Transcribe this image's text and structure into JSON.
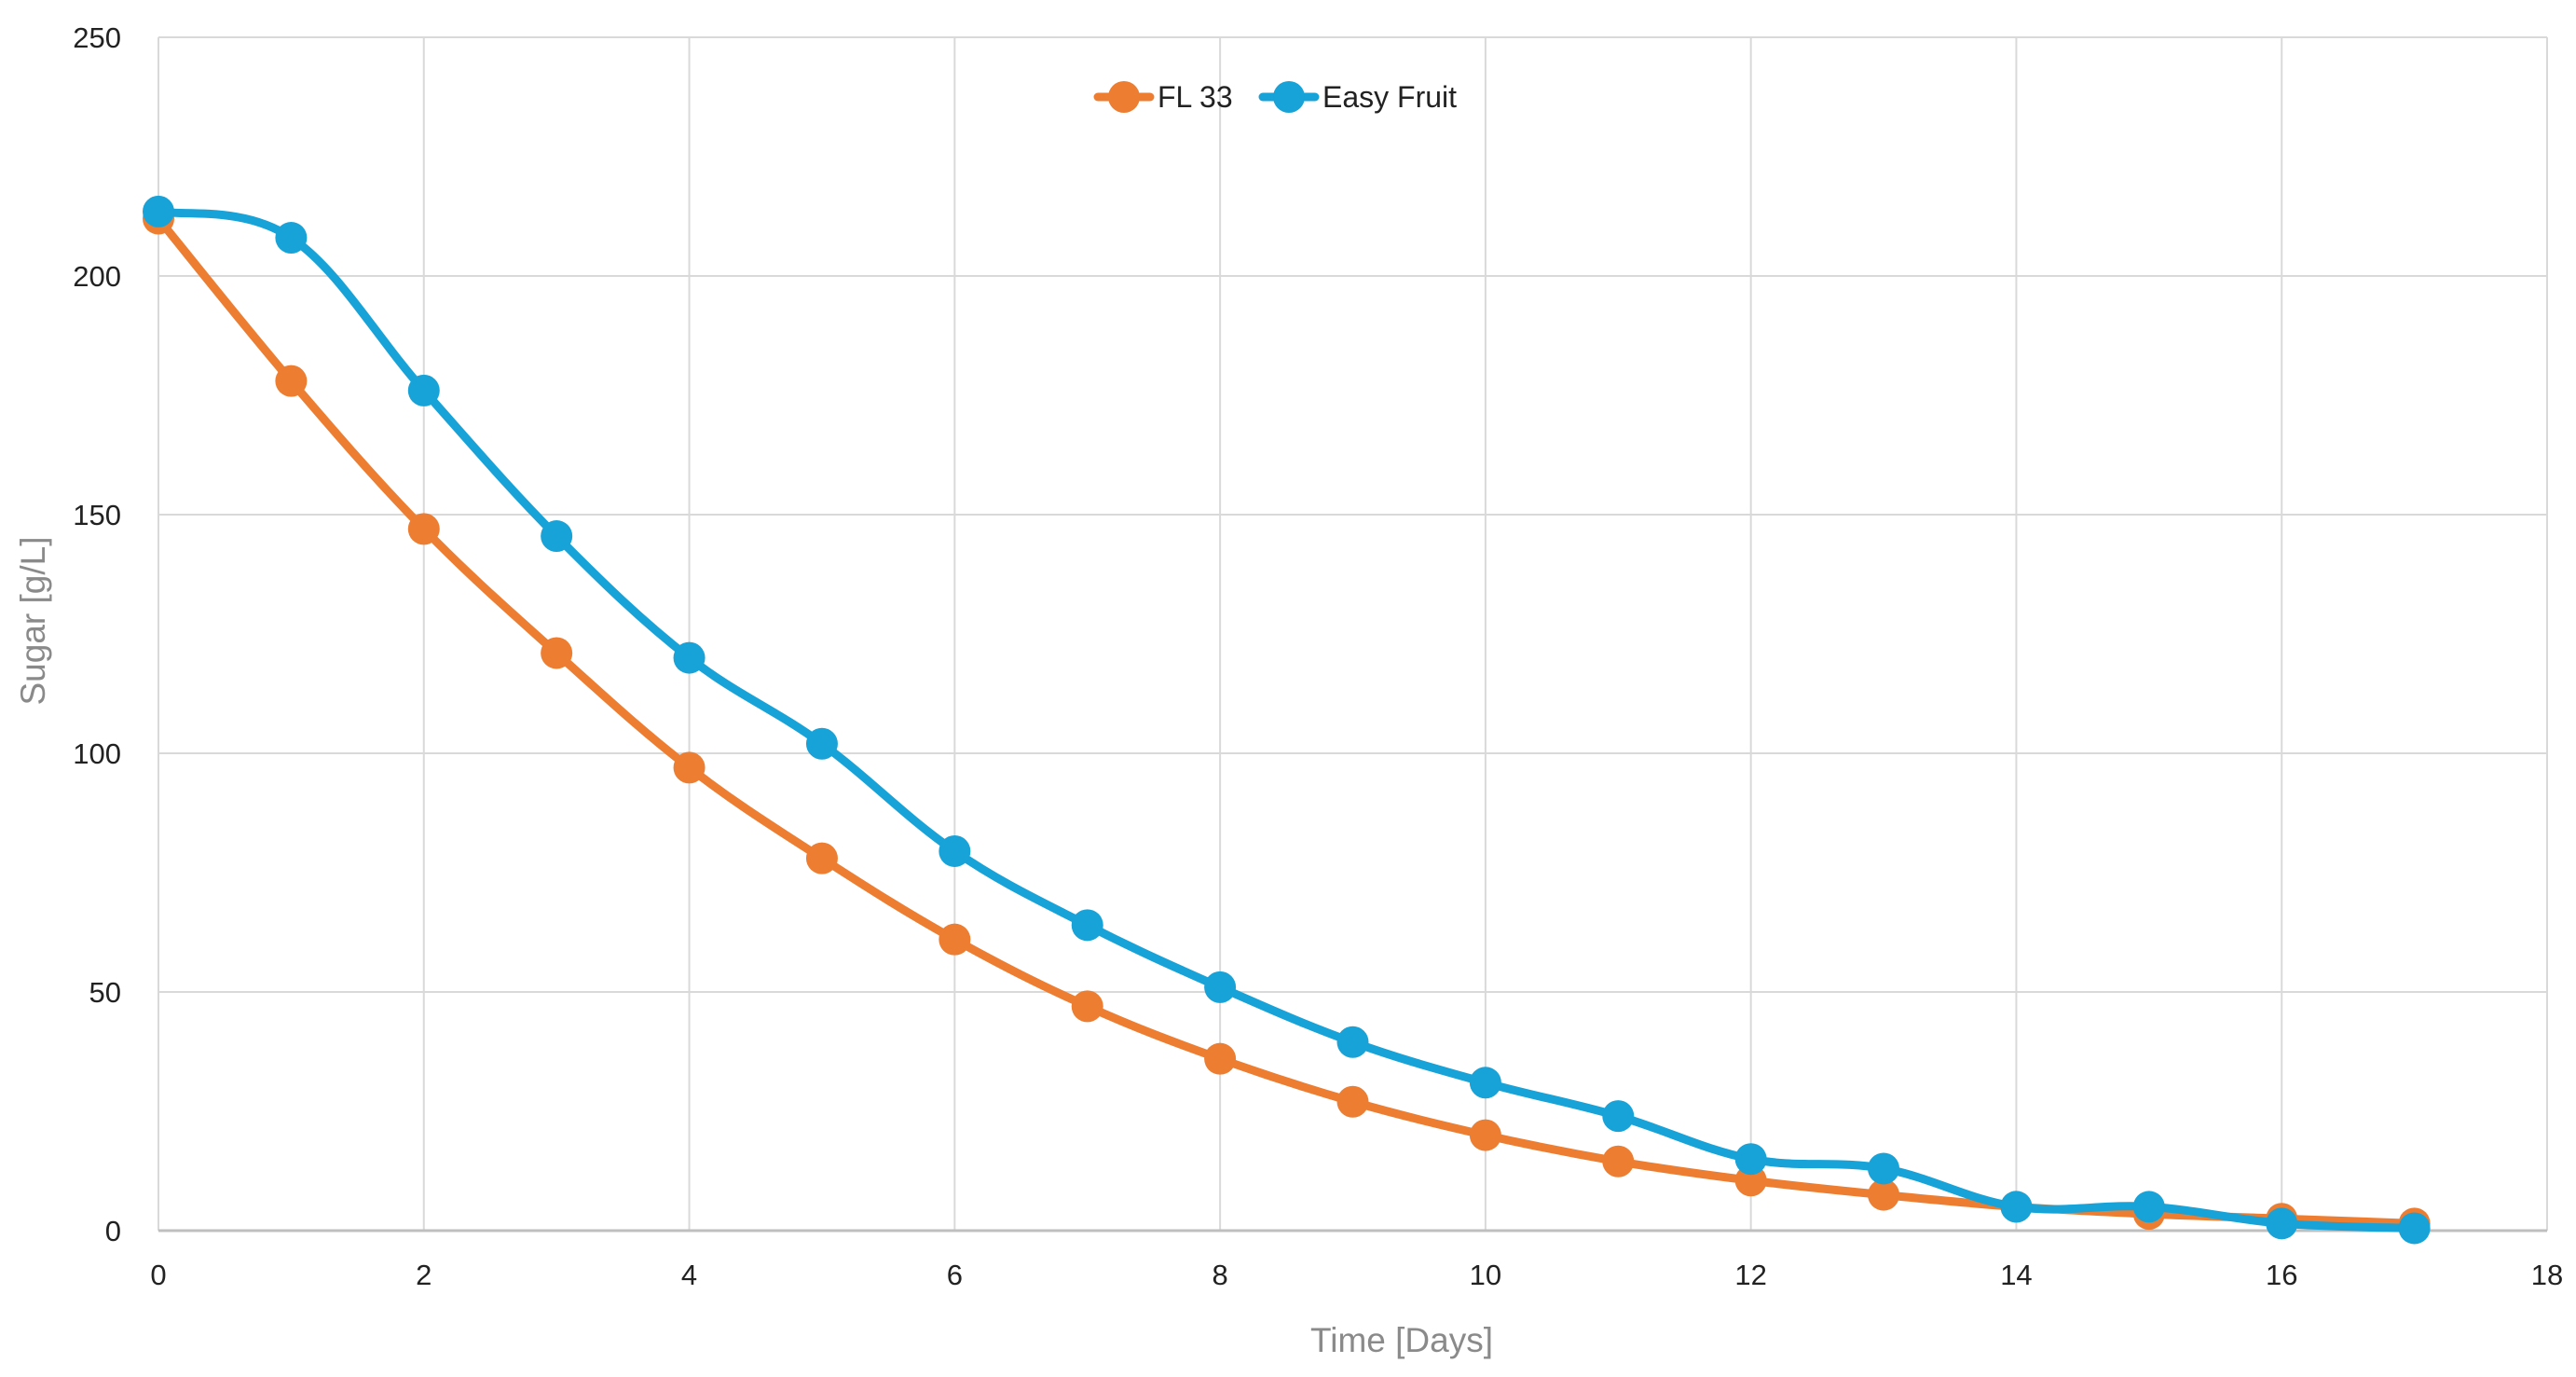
{
  "chart_data": {
    "type": "line",
    "xlabel": "Time [Days]",
    "ylabel": "Sugar [g/L]",
    "xlim": [
      0,
      18
    ],
    "ylim": [
      0,
      250
    ],
    "x_ticks": [
      0,
      2,
      4,
      6,
      8,
      10,
      12,
      14,
      16,
      18
    ],
    "y_ticks": [
      0,
      50,
      100,
      150,
      200,
      250
    ],
    "grid": true,
    "legend_position": "top-center",
    "smooth": true,
    "series": [
      {
        "name": "FL 33",
        "color": "#ED7D31",
        "x": [
          0,
          1,
          2,
          3,
          4,
          5,
          6,
          7,
          8,
          9,
          10,
          11,
          12,
          13,
          14,
          15,
          16,
          17
        ],
        "y": [
          212,
          178,
          147,
          121,
          97,
          78,
          61,
          47,
          36,
          27,
          20,
          14.5,
          10.5,
          7.5,
          5,
          3.5,
          2.5,
          1.5
        ]
      },
      {
        "name": "Easy Fruit",
        "color": "#17A2D8",
        "x": [
          0,
          1,
          2,
          3,
          4,
          5,
          6,
          7,
          8,
          9,
          10,
          11,
          12,
          13,
          14,
          15,
          16,
          17
        ],
        "y": [
          213.5,
          208,
          176,
          145.5,
          120,
          102,
          79.5,
          64,
          51,
          39.5,
          31,
          24,
          15,
          13,
          5,
          5,
          1.5,
          0.5
        ]
      }
    ]
  }
}
